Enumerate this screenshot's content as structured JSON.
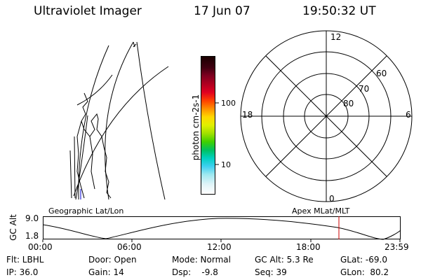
{
  "header": {
    "instrument": "Ultraviolet Imager",
    "date": "17 Jun 07",
    "time": "19:50:32 UT"
  },
  "map": {
    "label": "Geographic Lat/Lon"
  },
  "colorbar": {
    "unit_label": "photon cm-2s-1",
    "tick_labels": [
      "100",
      "10"
    ]
  },
  "polar": {
    "label": "Apex MLat/MLT",
    "mlt_labels": {
      "top": "12",
      "bottom": "0",
      "left": "18",
      "right": "6"
    },
    "lat_labels": [
      "60",
      "70",
      "80"
    ]
  },
  "timeline": {
    "ylabel": "GC Alt",
    "ymax": "9.0",
    "ymin": "1.8",
    "x_ticks": [
      "00:00",
      "06:00",
      "12:00",
      "18:00",
      "23:59"
    ],
    "current_marker_color": "#cc0000"
  },
  "status": {
    "flt": "Flt: LBHL",
    "ip": "IP: 36.0",
    "door": "Door: Open",
    "gain": "Gain: 14",
    "mode": "Mode: Normal",
    "dsp": "Dsp:    -9.8",
    "gcalt": "GC Alt: 5.3 Re",
    "seq": "Seq: 39",
    "glat": "GLat: -69.0",
    "glon": "GLon:  80.2"
  }
}
